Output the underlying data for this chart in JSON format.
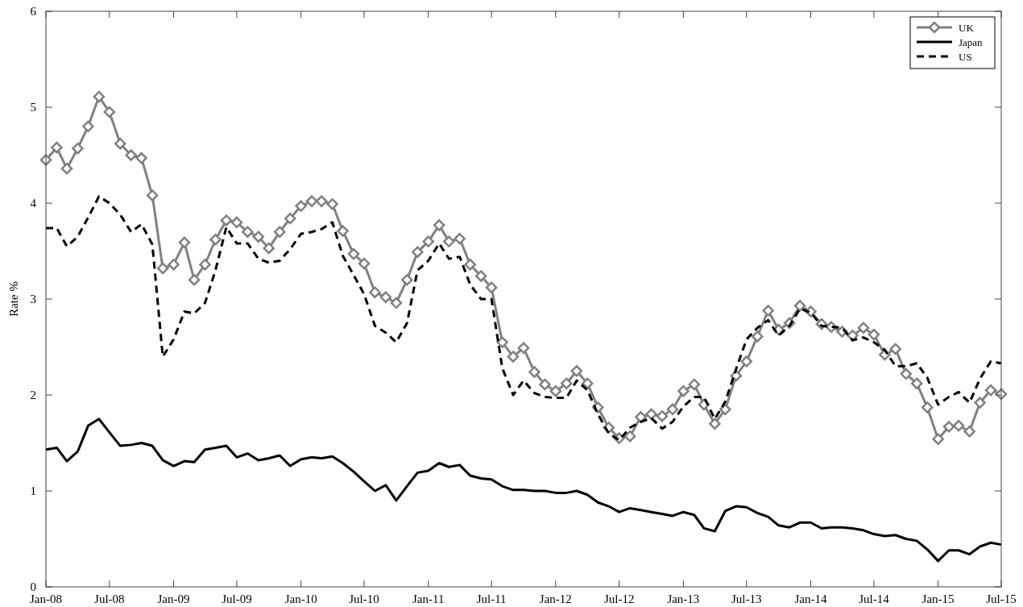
{
  "chart_data": {
    "type": "line",
    "ylabel": "Rate %",
    "x": [
      "2008-01",
      "2008-02",
      "2008-03",
      "2008-04",
      "2008-05",
      "2008-06",
      "2008-07",
      "2008-08",
      "2008-09",
      "2008-10",
      "2008-11",
      "2008-12",
      "2009-01",
      "2009-02",
      "2009-03",
      "2009-04",
      "2009-05",
      "2009-06",
      "2009-07",
      "2009-08",
      "2009-09",
      "2009-10",
      "2009-11",
      "2009-12",
      "2010-01",
      "2010-02",
      "2010-03",
      "2010-04",
      "2010-05",
      "2010-06",
      "2010-07",
      "2010-08",
      "2010-09",
      "2010-10",
      "2010-11",
      "2010-12",
      "2011-01",
      "2011-02",
      "2011-03",
      "2011-04",
      "2011-05",
      "2011-06",
      "2011-07",
      "2011-08",
      "2011-09",
      "2011-10",
      "2011-11",
      "2011-12",
      "2012-01",
      "2012-02",
      "2012-03",
      "2012-04",
      "2012-05",
      "2012-06",
      "2012-07",
      "2012-08",
      "2012-09",
      "2012-10",
      "2012-11",
      "2012-12",
      "2013-01",
      "2013-02",
      "2013-03",
      "2013-04",
      "2013-05",
      "2013-06",
      "2013-07",
      "2013-08",
      "2013-09",
      "2013-10",
      "2013-11",
      "2013-12",
      "2014-01",
      "2014-02",
      "2014-03",
      "2014-04",
      "2014-05",
      "2014-06",
      "2014-07",
      "2014-08",
      "2014-09",
      "2014-10",
      "2014-11",
      "2014-12",
      "2015-01",
      "2015-02",
      "2015-03",
      "2015-04",
      "2015-05",
      "2015-06",
      "2015-07"
    ],
    "series": [
      {
        "name": "UK",
        "color": "#808080",
        "marker": "diamond",
        "line_style": "solid",
        "values": [
          4.45,
          4.58,
          4.36,
          4.57,
          4.8,
          5.11,
          4.95,
          4.62,
          4.5,
          4.47,
          4.08,
          3.32,
          3.36,
          3.59,
          3.2,
          3.36,
          3.62,
          3.82,
          3.8,
          3.7,
          3.65,
          3.53,
          3.7,
          3.84,
          3.97,
          4.02,
          4.02,
          3.99,
          3.71,
          3.47,
          3.37,
          3.07,
          3.02,
          2.96,
          3.2,
          3.49,
          3.6,
          3.77,
          3.6,
          3.63,
          3.36,
          3.24,
          3.12,
          2.55,
          2.4,
          2.49,
          2.24,
          2.11,
          2.04,
          2.12,
          2.25,
          2.12,
          1.87,
          1.66,
          1.55,
          1.57,
          1.77,
          1.8,
          1.78,
          1.85,
          2.04,
          2.11,
          1.9,
          1.7,
          1.85,
          2.2,
          2.35,
          2.61,
          2.88,
          2.68,
          2.75,
          2.93,
          2.87,
          2.74,
          2.71,
          2.66,
          2.62,
          2.7,
          2.63,
          2.42,
          2.48,
          2.22,
          2.12,
          1.87,
          1.54,
          1.67,
          1.68,
          1.62,
          1.92,
          2.05,
          2.01
        ]
      },
      {
        "name": "Japan",
        "color": "#000000",
        "marker": "none",
        "line_style": "solid",
        "values": [
          1.43,
          1.45,
          1.31,
          1.41,
          1.68,
          1.75,
          1.61,
          1.47,
          1.48,
          1.5,
          1.47,
          1.32,
          1.26,
          1.31,
          1.3,
          1.43,
          1.45,
          1.47,
          1.35,
          1.39,
          1.32,
          1.34,
          1.37,
          1.26,
          1.33,
          1.35,
          1.34,
          1.36,
          1.29,
          1.2,
          1.1,
          1.0,
          1.06,
          0.9,
          1.05,
          1.19,
          1.21,
          1.29,
          1.25,
          1.27,
          1.16,
          1.13,
          1.12,
          1.05,
          1.01,
          1.01,
          1.0,
          1.0,
          0.98,
          0.98,
          1.0,
          0.96,
          0.88,
          0.84,
          0.78,
          0.82,
          0.8,
          0.78,
          0.76,
          0.74,
          0.78,
          0.75,
          0.61,
          0.58,
          0.79,
          0.84,
          0.83,
          0.77,
          0.73,
          0.64,
          0.62,
          0.67,
          0.67,
          0.61,
          0.62,
          0.62,
          0.61,
          0.59,
          0.55,
          0.53,
          0.54,
          0.5,
          0.48,
          0.39,
          0.27,
          0.38,
          0.38,
          0.34,
          0.42,
          0.46,
          0.44
        ]
      },
      {
        "name": "US",
        "color": "#000000",
        "marker": "none",
        "line_style": "dashed",
        "values": [
          3.74,
          3.74,
          3.55,
          3.65,
          3.85,
          4.07,
          4.0,
          3.88,
          3.7,
          3.78,
          3.57,
          2.4,
          2.58,
          2.87,
          2.85,
          2.96,
          3.3,
          3.75,
          3.58,
          3.58,
          3.42,
          3.38,
          3.4,
          3.52,
          3.68,
          3.7,
          3.73,
          3.8,
          3.45,
          3.25,
          3.05,
          2.72,
          2.65,
          2.55,
          2.75,
          3.3,
          3.4,
          3.58,
          3.42,
          3.44,
          3.15,
          3.0,
          3.0,
          2.28,
          2.0,
          2.15,
          2.02,
          1.98,
          1.97,
          1.97,
          2.15,
          2.05,
          1.8,
          1.6,
          1.53,
          1.66,
          1.72,
          1.76,
          1.65,
          1.72,
          1.88,
          1.98,
          1.98,
          1.75,
          1.93,
          2.27,
          2.58,
          2.7,
          2.78,
          2.62,
          2.72,
          2.9,
          2.86,
          2.72,
          2.71,
          2.7,
          2.57,
          2.6,
          2.55,
          2.47,
          2.3,
          2.3,
          2.33,
          2.18,
          1.9,
          1.98,
          2.03,
          1.92,
          2.17,
          2.35,
          2.33
        ]
      }
    ],
    "xlim": [
      "2008-01",
      "2015-07"
    ],
    "xticks": [
      {
        "value": "2008-01",
        "label": "Jan-08"
      },
      {
        "value": "2008-07",
        "label": "Jul-08"
      },
      {
        "value": "2009-01",
        "label": "Jan-09"
      },
      {
        "value": "2009-07",
        "label": "Jul-09"
      },
      {
        "value": "2010-01",
        "label": "Jan-10"
      },
      {
        "value": "2010-07",
        "label": "Jul-10"
      },
      {
        "value": "2011-01",
        "label": "Jan-11"
      },
      {
        "value": "2011-07",
        "label": "Jul-11"
      },
      {
        "value": "2012-01",
        "label": "Jan-12"
      },
      {
        "value": "2012-07",
        "label": "Jul-12"
      },
      {
        "value": "2013-01",
        "label": "Jan-13"
      },
      {
        "value": "2013-07",
        "label": "Jul-13"
      },
      {
        "value": "2014-01",
        "label": "Jan-14"
      },
      {
        "value": "2014-07",
        "label": "Jul-14"
      },
      {
        "value": "2015-01",
        "label": "Jan-15"
      },
      {
        "value": "2015-07",
        "label": "Jul-15"
      }
    ],
    "ylim": [
      0,
      6
    ],
    "yticks": [
      0,
      1,
      2,
      3,
      4,
      5,
      6
    ],
    "grid": false,
    "legend": "top right"
  }
}
